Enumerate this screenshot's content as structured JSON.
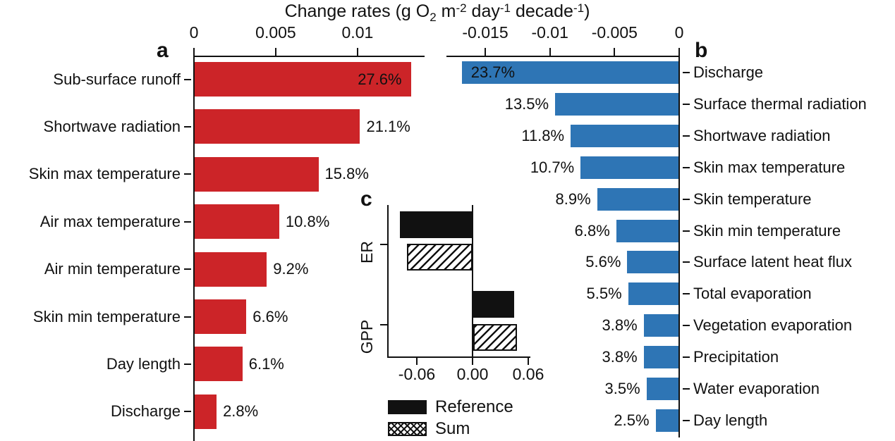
{
  "title": {
    "plain": "Change rates (g O2 m-2 day-1 decade-1)",
    "parts": [
      {
        "text": "Change rates (g O",
        "style": "normal"
      },
      {
        "text": "2",
        "style": "sub"
      },
      {
        "text": " m",
        "style": "normal"
      },
      {
        "text": "-2",
        "style": "sup"
      },
      {
        "text": " day",
        "style": "normal"
      },
      {
        "text": "-1",
        "style": "sup"
      },
      {
        "text": " decade",
        "style": "normal"
      },
      {
        "text": "-1",
        "style": "sup"
      },
      {
        "text": ")",
        "style": "normal"
      }
    ]
  },
  "panel_letters": {
    "a": "a",
    "b": "b",
    "c": "c"
  },
  "colors": {
    "positive_bar_red": "#CC2428",
    "negative_bar_blue": "#2E75B5",
    "inset_bar_black": "#111111",
    "axis": "#111111",
    "text": "#111111"
  },
  "chart_data": [
    {
      "id": "a",
      "type": "bar",
      "orientation": "horizontal",
      "panel_label": "a",
      "bar_color": "#CC2428",
      "categories": [
        "Sub-surface runoff",
        "Shortwave radiation",
        "Skin max temperature",
        "Air max temperature",
        "Air min temperature",
        "Skin min temperature",
        "Day length",
        "Discharge"
      ],
      "values": [
        0.01322,
        0.01011,
        0.00757,
        0.00517,
        0.00441,
        0.00316,
        0.00292,
        0.00134
      ],
      "percent_labels": [
        "27.6%",
        "21.1%",
        "15.8%",
        "10.8%",
        "9.2%",
        "6.6%",
        "6.1%",
        "2.8%"
      ],
      "xlim": [
        0,
        0.0141
      ],
      "xticks": [
        {
          "value": 0,
          "label": "0"
        },
        {
          "value": 0.005,
          "label": "0.005"
        },
        {
          "value": 0.01,
          "label": "0.01"
        }
      ],
      "category_side": "left",
      "xlabel": "Change rates (g O2 m-2 day-1 decade-1)"
    },
    {
      "id": "b",
      "type": "bar",
      "orientation": "horizontal",
      "panel_label": "b",
      "bar_color": "#2E75B5",
      "categories": [
        "Discharge",
        "Surface thermal radiation",
        "Shortwave radiation",
        "Skin max temperature",
        "Skin temperature",
        "Skin min temperature",
        "Surface latent heat flux",
        "Total evaporation",
        "Vegetation evaporation",
        "Precipitation",
        "Water evaporation",
        "Day length"
      ],
      "values": [
        -0.01676,
        -0.00954,
        -0.00834,
        -0.00757,
        -0.00629,
        -0.00481,
        -0.00396,
        -0.00389,
        -0.00269,
        -0.00269,
        -0.00247,
        -0.00177
      ],
      "percent_labels": [
        "23.7%",
        "13.5%",
        "11.8%",
        "10.7%",
        "8.9%",
        "6.8%",
        "5.6%",
        "5.5%",
        "3.8%",
        "3.8%",
        "3.5%",
        "2.5%"
      ],
      "xlim": [
        -0.018,
        0
      ],
      "xticks": [
        {
          "value": -0.015,
          "label": "-0.015"
        },
        {
          "value": -0.01,
          "label": "-0.01"
        },
        {
          "value": -0.005,
          "label": "-0.005"
        },
        {
          "value": 0,
          "label": "0"
        }
      ],
      "category_side": "right",
      "xlabel": "Change rates (g O2 m-2 day-1 decade-1)"
    },
    {
      "id": "c",
      "type": "bar",
      "orientation": "horizontal",
      "panel_label": "c",
      "categories": [
        "ER",
        "GPP"
      ],
      "series": [
        {
          "name": "Reference",
          "style": "solid",
          "values": [
            -0.078,
            0.044
          ]
        },
        {
          "name": "Sum",
          "style": "hatched",
          "values": [
            -0.071,
            0.047
          ]
        }
      ],
      "xlim": [
        -0.091,
        0.062
      ],
      "xticks": [
        {
          "value": -0.06,
          "label": "-0.06"
        },
        {
          "value": 0,
          "label": "0.00"
        },
        {
          "value": 0.06,
          "label": "0.06"
        }
      ],
      "legend": [
        {
          "label": "Reference",
          "style": "solid"
        },
        {
          "label": "Sum",
          "style": "crosshatch"
        }
      ]
    }
  ]
}
